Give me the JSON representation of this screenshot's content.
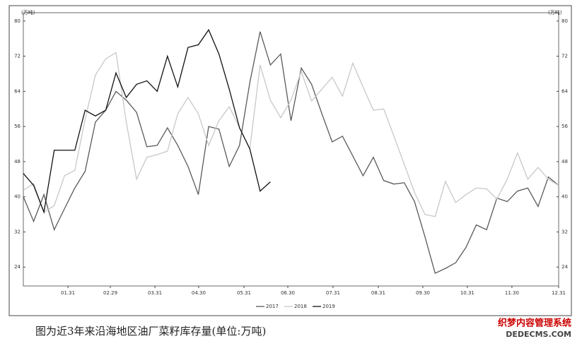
{
  "chart_data": {
    "type": "line",
    "unit_left": "(万吨)",
    "unit_right": "(万吨)",
    "caption": "图为近3年来沿海地区油厂菜籽库存量(单位:万吨)",
    "watermark": "织梦内容管理系统",
    "watermark_sub": "DEDECMS.COM",
    "x": [
      0,
      1,
      2,
      3,
      4,
      5,
      6,
      7,
      8,
      9,
      10,
      11,
      12,
      13,
      14,
      15,
      16,
      17,
      18,
      19,
      20,
      21,
      22,
      23,
      24,
      25,
      26,
      27,
      28,
      29,
      30,
      31,
      32,
      33,
      34,
      35,
      36,
      37,
      38,
      39,
      40,
      41,
      42,
      43,
      44,
      45,
      46,
      47,
      48,
      49,
      50,
      51,
      52
    ],
    "xlim": [
      0,
      52
    ],
    "xticks": [
      {
        "value": 4.33,
        "label": "01.31"
      },
      {
        "value": 8.45,
        "label": "02.29"
      },
      {
        "value": 12.78,
        "label": "03.31"
      },
      {
        "value": 17.03,
        "label": "04.30"
      },
      {
        "value": 21.43,
        "label": "05.31"
      },
      {
        "value": 25.69,
        "label": "06.30"
      },
      {
        "value": 30.08,
        "label": "07.31"
      },
      {
        "value": 34.48,
        "label": "08.31"
      },
      {
        "value": 38.81,
        "label": "09.30"
      },
      {
        "value": 43.13,
        "label": "10.31"
      },
      {
        "value": 47.46,
        "label": "11.30"
      },
      {
        "value": 52,
        "label": "12.31"
      }
    ],
    "ylim": [
      19.7,
      81.9
    ],
    "yticks": [
      24,
      32,
      40,
      48,
      56,
      64,
      72,
      80
    ],
    "y2lim": [
      19.7,
      81.9
    ],
    "y2ticks": [
      24,
      32,
      40,
      48,
      56,
      64,
      72,
      80
    ],
    "grid": false,
    "legend": "bottom",
    "series": [
      {
        "name": "2017",
        "color": "#5a5a5a",
        "values": [
          40,
          34.4,
          40.5,
          32.5,
          37.3,
          42,
          45.8,
          57,
          59.7,
          64,
          62,
          59.2,
          51.4,
          51.7,
          55.7,
          51.7,
          46.9,
          40.5,
          56,
          55.4,
          46.9,
          51.7,
          66,
          77.6,
          70,
          72.5,
          57.3,
          69.3,
          65.6,
          58.9,
          52.5,
          53.8,
          49.3,
          44.8,
          49,
          43.7,
          42.9,
          43.2,
          38.9,
          31,
          22.6,
          23.7,
          25,
          28.5,
          33.6,
          32.5,
          39.7,
          38.9,
          41.3,
          42,
          37.8,
          44.5,
          42.6
        ]
      },
      {
        "name": "2018",
        "color": "#c8c8c8",
        "values": [
          41.5,
          43,
          36.5,
          38,
          44.8,
          46,
          57.6,
          67.7,
          71.4,
          72.8,
          57,
          44,
          49,
          49.6,
          50.4,
          58.9,
          62.6,
          58.9,
          51.7,
          57.3,
          60.5,
          55.7,
          50.9,
          70,
          62,
          58,
          62,
          68.5,
          61.8,
          64.5,
          67.2,
          62.9,
          70.4,
          65,
          59.7,
          60,
          53.8,
          47.4,
          41,
          36,
          35.5,
          43.5,
          38.7,
          40.5,
          42,
          41.8,
          39.5,
          44,
          50,
          44,
          46.7,
          44,
          42.6
        ]
      },
      {
        "name": "2019",
        "color": "#111111",
        "values": [
          45.3,
          42.6,
          36.5,
          50.6,
          50.6,
          50.6,
          59.7,
          58.4,
          59.7,
          68.2,
          62.6,
          65.6,
          66.4,
          64,
          72,
          65,
          74,
          74.6,
          78,
          72.5,
          64.5,
          55.7,
          50.9,
          41.3,
          43.4,
          null,
          null,
          null,
          null,
          null,
          null,
          null,
          null,
          null,
          null,
          null,
          null,
          null,
          null,
          null,
          null,
          null,
          null,
          null,
          null,
          null,
          null,
          null,
          null,
          null,
          null,
          null,
          null
        ]
      }
    ]
  }
}
